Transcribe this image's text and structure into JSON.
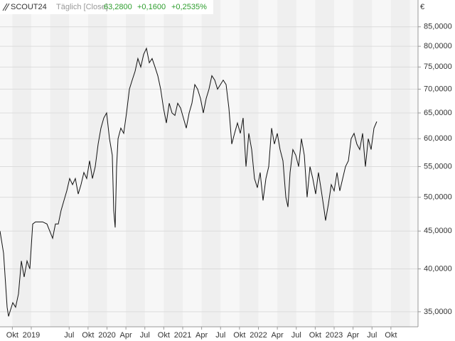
{
  "chart_data": {
    "type": "line",
    "title": "SCOUT24",
    "subtitle": "Täglich [Close]",
    "last_value": "63,2800",
    "change": "+0,1600",
    "change_pct": "+0,2535%",
    "y_unit": "€",
    "log_scale": true,
    "grid": true,
    "color": "#111111",
    "header_value_color": "#2e9e2e",
    "xlim": [
      2018.587,
      2024.108
    ],
    "ylim": [
      33.4,
      92.4
    ],
    "xticks": [
      {
        "value": 2018.75,
        "label": "Okt"
      },
      {
        "value": 2019.0,
        "label": "2019"
      },
      {
        "value": 2019.5,
        "label": "Jul"
      },
      {
        "value": 2019.75,
        "label": "Okt"
      },
      {
        "value": 2020.0,
        "label": "2020"
      },
      {
        "value": 2020.25,
        "label": "Apr"
      },
      {
        "value": 2020.5,
        "label": "Jul"
      },
      {
        "value": 2020.75,
        "label": "Okt"
      },
      {
        "value": 2021.0,
        "label": "2021"
      },
      {
        "value": 2021.25,
        "label": "Apr"
      },
      {
        "value": 2021.5,
        "label": "Jul"
      },
      {
        "value": 2021.75,
        "label": "Okt"
      },
      {
        "value": 2022.0,
        "label": "2022"
      },
      {
        "value": 2022.25,
        "label": "Apr"
      },
      {
        "value": 2022.5,
        "label": "Jul"
      },
      {
        "value": 2022.75,
        "label": "Okt"
      },
      {
        "value": 2023.0,
        "label": "2023"
      },
      {
        "value": 2023.25,
        "label": "Apr"
      },
      {
        "value": 2023.5,
        "label": "Jul"
      },
      {
        "value": 2023.75,
        "label": "Okt"
      }
    ],
    "yticks": [
      {
        "value": 35,
        "label": "35,0000"
      },
      {
        "value": 40,
        "label": "40,0000"
      },
      {
        "value": 45,
        "label": "45,0000"
      },
      {
        "value": 50,
        "label": "50,0000"
      },
      {
        "value": 55,
        "label": "55,0000"
      },
      {
        "value": 60,
        "label": "60,0000"
      },
      {
        "value": 65,
        "label": "65,0000"
      },
      {
        "value": 70,
        "label": "70,0000"
      },
      {
        "value": 75,
        "label": "75,0000"
      },
      {
        "value": 80,
        "label": "80,0000"
      },
      {
        "value": 85,
        "label": "85,0000"
      }
    ],
    "x": [
      2018.587,
      2018.634,
      2018.662,
      2018.681,
      2018.7,
      2018.718,
      2018.756,
      2018.793,
      2018.831,
      2018.869,
      2018.906,
      2018.944,
      2018.981,
      2019.019,
      2019.056,
      2019.15,
      2019.207,
      2019.244,
      2019.282,
      2019.319,
      2019.357,
      2019.394,
      2019.432,
      2019.469,
      2019.507,
      2019.545,
      2019.582,
      2019.62,
      2019.657,
      2019.695,
      2019.732,
      2019.77,
      2019.808,
      2019.845,
      2019.883,
      2019.92,
      2019.958,
      2019.995,
      2020.033,
      2020.07,
      2020.089,
      2020.108,
      2020.127,
      2020.146,
      2020.183,
      2020.221,
      2020.258,
      2020.296,
      2020.333,
      2020.371,
      2020.408,
      2020.446,
      2020.484,
      2020.521,
      2020.559,
      2020.596,
      2020.634,
      2020.671,
      2020.709,
      2020.746,
      2020.784,
      2020.822,
      2020.859,
      2020.897,
      2020.934,
      2020.972,
      2021.009,
      2021.047,
      2021.085,
      2021.122,
      2021.16,
      2021.197,
      2021.235,
      2021.272,
      2021.31,
      2021.347,
      2021.385,
      2021.423,
      2021.46,
      2021.498,
      2021.535,
      2021.573,
      2021.61,
      2021.648,
      2021.685,
      2021.723,
      2021.761,
      2021.798,
      2021.836,
      2021.873,
      2021.911,
      2021.948,
      2021.986,
      2022.023,
      2022.061,
      2022.099,
      2022.136,
      2022.174,
      2022.211,
      2022.249,
      2022.286,
      2022.324,
      2022.362,
      2022.39,
      2022.418,
      2022.455,
      2022.493,
      2022.531,
      2022.568,
      2022.606,
      2022.643,
      2022.681,
      2022.718,
      2022.756,
      2022.793,
      2022.831,
      2022.869,
      2022.887,
      2022.925,
      2022.962,
      2023.0,
      2023.038,
      2023.075,
      2023.113,
      2023.15,
      2023.188,
      2023.225,
      2023.263,
      2023.3,
      2023.338,
      2023.376,
      2023.413,
      2023.451,
      2023.488,
      2023.526,
      2023.563
    ],
    "values": [
      45,
      42,
      38,
      35.5,
      34.5,
      35,
      36,
      35.5,
      37,
      41,
      39,
      41,
      40,
      46,
      46.3,
      46.3,
      46,
      45,
      44,
      46,
      46,
      48,
      49.5,
      51,
      53,
      52,
      53,
      50.5,
      52,
      54,
      53,
      56,
      53,
      55,
      59,
      62,
      64,
      65,
      60,
      57,
      48,
      45.5,
      55,
      60,
      62,
      61,
      65,
      70,
      72,
      74,
      77,
      75,
      78,
      79.5,
      76,
      77,
      75,
      73,
      70,
      66,
      63,
      67,
      65,
      64.5,
      67,
      66,
      64,
      62,
      65,
      67,
      71,
      70,
      68,
      65,
      68,
      70,
      73,
      72,
      70,
      71,
      72,
      71,
      66,
      59,
      61,
      63,
      61,
      64,
      55,
      61,
      58,
      53,
      51.5,
      54,
      49.5,
      53,
      55,
      62,
      59,
      61,
      58,
      56,
      50,
      48.5,
      54,
      58,
      57,
      55,
      60,
      57,
      50,
      55,
      53,
      50.5,
      54,
      51,
      48,
      46.5,
      49,
      52,
      51,
      54,
      51,
      53,
      55,
      56,
      60,
      61,
      59,
      58,
      61,
      55,
      60,
      58,
      62,
      63.28
    ]
  }
}
